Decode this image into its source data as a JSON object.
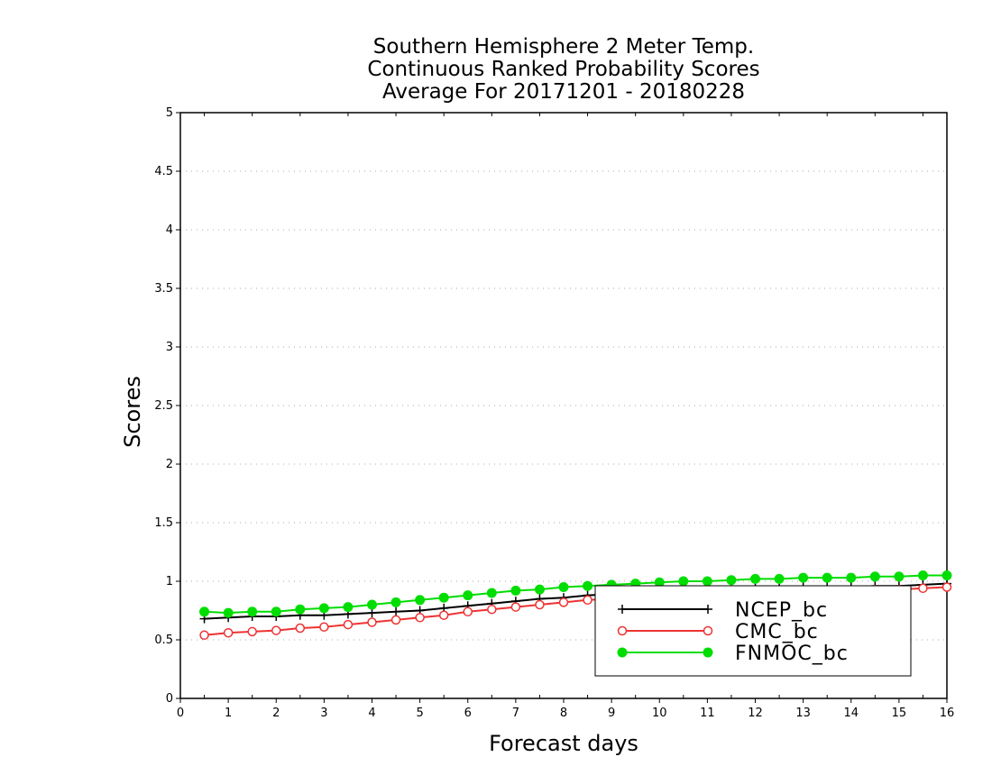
{
  "chart_data": {
    "type": "line",
    "title_lines": [
      "Southern Hemisphere 2 Meter Temp.",
      "Continuous Ranked Probability Scores",
      "Average For 20171201 - 20180228"
    ],
    "xlabel": "Forecast days",
    "ylabel": "Scores",
    "xlim": [
      0,
      16
    ],
    "ylim": [
      0,
      5
    ],
    "x_ticks": [
      "0",
      "1",
      "2",
      "3",
      "4",
      "5",
      "6",
      "7",
      "8",
      "9",
      "10",
      "11",
      "12",
      "13",
      "14",
      "15",
      "16"
    ],
    "y_ticks": [
      "0",
      "0.5",
      "1",
      "1.5",
      "2",
      "2.5",
      "3",
      "3.5",
      "4",
      "4.5",
      "5"
    ],
    "grid": true,
    "legend_position": "bottom-right",
    "x": [
      0.5,
      1,
      1.5,
      2,
      2.5,
      3,
      3.5,
      4,
      4.5,
      5,
      5.5,
      6,
      6.5,
      7,
      7.5,
      8,
      8.5,
      9,
      9.5,
      10,
      10.5,
      11,
      11.5,
      12,
      12.5,
      13,
      13.5,
      14,
      14.5,
      15,
      15.5,
      16
    ],
    "series": [
      {
        "name": "NCEP_bc",
        "color": "#000000",
        "marker": "plus",
        "values": [
          0.68,
          0.69,
          0.7,
          0.7,
          0.71,
          0.71,
          0.72,
          0.73,
          0.74,
          0.75,
          0.77,
          0.79,
          0.81,
          0.83,
          0.85,
          0.86,
          0.88,
          0.89,
          0.9,
          0.91,
          0.92,
          0.93,
          0.93,
          0.94,
          0.94,
          0.95,
          0.95,
          0.95,
          0.96,
          0.96,
          0.97,
          0.98
        ]
      },
      {
        "name": "CMC_bc",
        "color": "#ee3333",
        "marker": "open-circle",
        "values": [
          0.54,
          0.56,
          0.57,
          0.58,
          0.6,
          0.61,
          0.63,
          0.65,
          0.67,
          0.69,
          0.71,
          0.74,
          0.76,
          0.78,
          0.8,
          0.82,
          0.84,
          0.85,
          0.86,
          0.87,
          0.88,
          0.89,
          0.9,
          0.9,
          0.91,
          0.91,
          0.92,
          0.92,
          0.93,
          0.93,
          0.94,
          0.95
        ]
      },
      {
        "name": "FNMOC_bc",
        "color": "#00dd00",
        "marker": "filled-circle",
        "values": [
          0.74,
          0.73,
          0.74,
          0.74,
          0.76,
          0.77,
          0.78,
          0.8,
          0.82,
          0.84,
          0.86,
          0.88,
          0.9,
          0.92,
          0.93,
          0.95,
          0.96,
          0.97,
          0.98,
          0.99,
          1.0,
          1.0,
          1.01,
          1.02,
          1.02,
          1.03,
          1.03,
          1.03,
          1.04,
          1.04,
          1.05,
          1.05
        ]
      }
    ]
  }
}
